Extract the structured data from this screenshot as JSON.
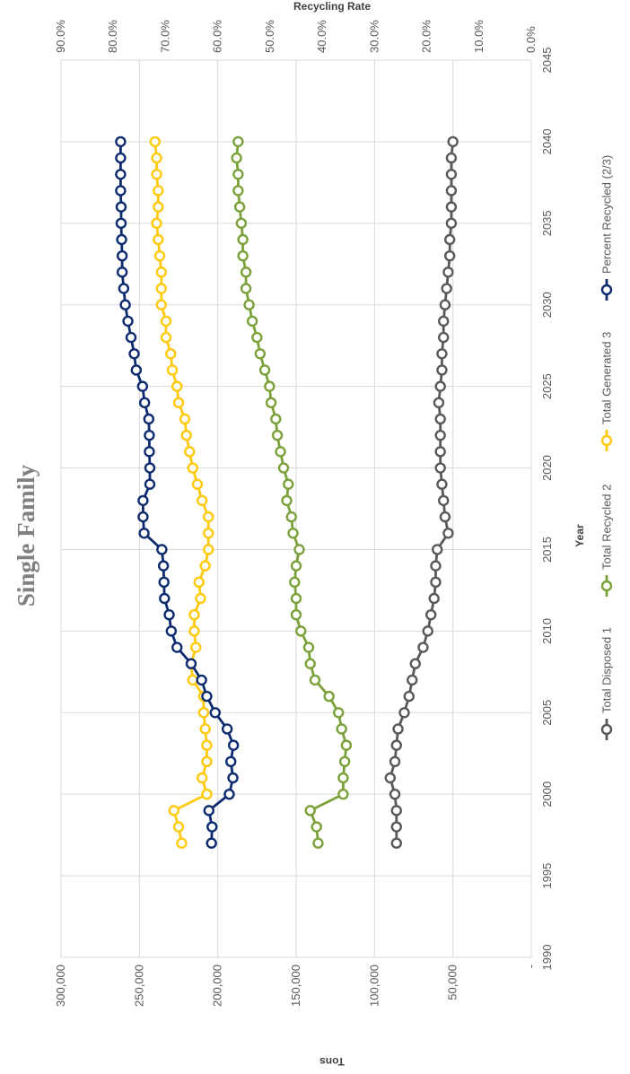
{
  "chart_data": {
    "type": "line",
    "title": "Single Family",
    "xlabel": "Year",
    "ylabel": "Tons",
    "y2label": "Recycling Rate",
    "xlim": [
      1990,
      2045
    ],
    "ylim": [
      0,
      300000
    ],
    "y2lim": [
      0,
      0.9
    ],
    "x_ticks": [
      "1990",
      "1995",
      "2000",
      "2005",
      "2010",
      "2015",
      "2020",
      "2025",
      "2030",
      "2035",
      "2040",
      "2045"
    ],
    "y_ticks": [
      "-",
      "50,000",
      "100,000",
      "150,000",
      "200,000",
      "250,000",
      "300,000"
    ],
    "y2_ticks": [
      "0.0%",
      "10.0%",
      "20.0%",
      "30.0%",
      "40.0%",
      "50.0%",
      "60.0%",
      "70.0%",
      "80.0%",
      "90.0%"
    ],
    "grid": true,
    "legend_position": "bottom",
    "x": [
      1997,
      1998,
      1999,
      2000,
      2001,
      2002,
      2003,
      2004,
      2005,
      2006,
      2007,
      2008,
      2009,
      2010,
      2011,
      2012,
      2013,
      2014,
      2015,
      2016,
      2017,
      2018,
      2019,
      2020,
      2021,
      2022,
      2023,
      2024,
      2025,
      2026,
      2027,
      2028,
      2029,
      2030,
      2031,
      2032,
      2033,
      2034,
      2035,
      2036,
      2037,
      2038,
      2039,
      2040
    ],
    "series": [
      {
        "name": "Total Disposed 1",
        "color": "#595959",
        "axis": "left",
        "values": [
          86000,
          86000,
          86000,
          87000,
          90000,
          87000,
          86000,
          85000,
          81000,
          78000,
          76000,
          74000,
          69000,
          66000,
          64000,
          62000,
          61000,
          61000,
          60000,
          53000,
          55000,
          56000,
          57000,
          58000,
          58000,
          58000,
          58000,
          59000,
          58000,
          57000,
          57000,
          56000,
          56000,
          55000,
          54000,
          53000,
          52000,
          52000,
          51000,
          51000,
          51000,
          51000,
          51000,
          50000
        ]
      },
      {
        "name": "Total Recycled 2",
        "color": "#7ba13b",
        "axis": "left",
        "values": [
          136000,
          137000,
          141000,
          120000,
          120000,
          119000,
          118000,
          121000,
          123000,
          129000,
          138000,
          141000,
          142000,
          147000,
          150000,
          150000,
          151000,
          150000,
          148000,
          152000,
          153000,
          156000,
          155000,
          158000,
          160000,
          162000,
          163000,
          166000,
          167000,
          170000,
          173000,
          175000,
          178000,
          180000,
          182000,
          182000,
          184000,
          184000,
          185000,
          186000,
          187000,
          187000,
          188000,
          187000
        ]
      },
      {
        "name": "Total Generated 3",
        "color": "#ffc90e",
        "axis": "left",
        "values": [
          223000,
          225000,
          228000,
          207000,
          210000,
          207000,
          207000,
          208000,
          209000,
          209000,
          216000,
          217000,
          214000,
          215000,
          215000,
          211000,
          212000,
          208000,
          206000,
          206000,
          206000,
          210000,
          213000,
          216000,
          218000,
          220000,
          221000,
          225000,
          226000,
          229000,
          230000,
          233000,
          233000,
          236000,
          236000,
          236000,
          237000,
          238000,
          239000,
          238000,
          238000,
          239000,
          239000,
          240000
        ]
      },
      {
        "name": "Percent Recycled (2/3)",
        "color": "#0d2b6e",
        "axis": "right",
        "values": [
          0.612,
          0.611,
          0.617,
          0.578,
          0.571,
          0.575,
          0.57,
          0.582,
          0.605,
          0.621,
          0.631,
          0.651,
          0.678,
          0.689,
          0.693,
          0.702,
          0.703,
          0.704,
          0.707,
          0.741,
          0.743,
          0.743,
          0.73,
          0.73,
          0.731,
          0.731,
          0.732,
          0.74,
          0.744,
          0.756,
          0.76,
          0.766,
          0.772,
          0.777,
          0.78,
          0.783,
          0.783,
          0.784,
          0.785,
          0.785,
          0.786,
          0.786,
          0.786,
          0.786
        ]
      }
    ]
  }
}
